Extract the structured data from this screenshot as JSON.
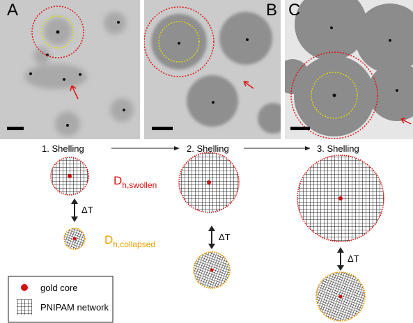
{
  "panels": [
    "A",
    "B",
    "C"
  ],
  "steps": [
    "1. Shelling",
    "2. Shelling",
    "3. Shelling"
  ],
  "diameters": [
    {
      "symbol": "D",
      "subscript": "h,swollen"
    },
    {
      "symbol": "D",
      "subscript": "h,collapsed"
    }
  ],
  "delta_t": [
    "ΔT",
    "ΔT",
    "ΔT"
  ],
  "legend": [
    "gold core",
    "PNIPAM network"
  ]
}
